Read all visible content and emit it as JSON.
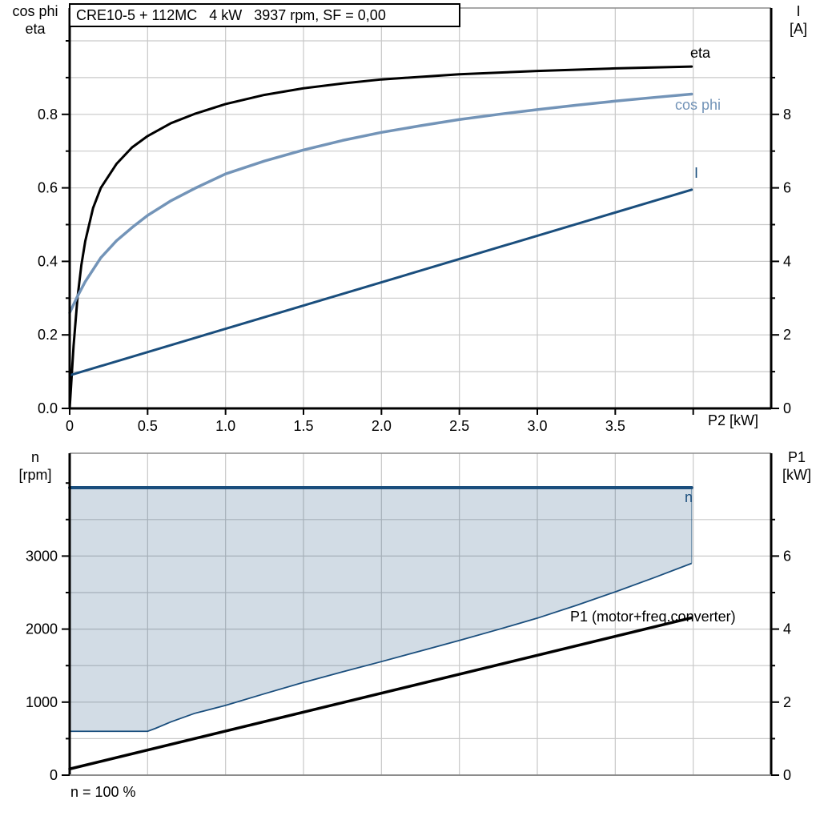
{
  "colors": {
    "black": "#000000",
    "navy": "#1a4e7d",
    "steel": "#7394b8",
    "grid": "#c9c9c9",
    "frame": "#8c8c8c",
    "fill": "rgba(28,79,124,0.2)"
  },
  "chart_data": [
    {
      "id": "motor-curves",
      "type": "line",
      "title": "CRE10-5 + 112MC   4 kW   3937 rpm, SF = 0,00",
      "left_axis": {
        "name_lines": [
          "cos phi",
          "eta"
        ],
        "major": [
          {
            "v": 0,
            "label": "0.0"
          },
          {
            "v": 0.2,
            "label": "0.2"
          },
          {
            "v": 0.4,
            "label": "0.4"
          },
          {
            "v": 0.6,
            "label": "0.6"
          },
          {
            "v": 0.8,
            "label": "0.8"
          }
        ],
        "minor": [
          0.1,
          0.3,
          0.5,
          0.7,
          0.9,
          1.0
        ],
        "grid": [
          0.1,
          0.2,
          0.3,
          0.4,
          0.5,
          0.6,
          0.7,
          0.8,
          0.9,
          1.0
        ],
        "range": [
          0,
          1.09
        ]
      },
      "right_axis": {
        "name_lines": [
          "I",
          "[A]"
        ],
        "major": [
          {
            "v": 0,
            "label": "0"
          },
          {
            "v": 2,
            "label": "2"
          },
          {
            "v": 4,
            "label": "4"
          },
          {
            "v": 6,
            "label": "6"
          },
          {
            "v": 8,
            "label": "8"
          }
        ],
        "minor": [
          1,
          3,
          5,
          7,
          9
        ],
        "unit_in_left": 0.1,
        "range": [
          0,
          10.9
        ]
      },
      "x_axis": {
        "label": "P2 [kW]",
        "major": [
          {
            "v": 0,
            "label": "0"
          },
          {
            "v": 0.5,
            "label": "0.5"
          },
          {
            "v": 1,
            "label": "1.0"
          },
          {
            "v": 1.5,
            "label": "1.5"
          },
          {
            "v": 2,
            "label": "2.0"
          },
          {
            "v": 2.5,
            "label": "2.5"
          },
          {
            "v": 3,
            "label": "3.0"
          },
          {
            "v": 3.5,
            "label": "3.5"
          },
          {
            "v": 4,
            "label": ""
          }
        ],
        "grid": [
          0.5,
          1,
          1.5,
          2,
          2.5,
          3,
          3.5,
          4
        ],
        "range": [
          0,
          4.5
        ]
      },
      "series": [
        {
          "name": "eta",
          "label": "eta",
          "color": "black",
          "width": 3,
          "axis": "left",
          "x": [
            0,
            0.025,
            0.05,
            0.075,
            0.1,
            0.15,
            0.2,
            0.3,
            0.4,
            0.5,
            0.65,
            0.8,
            1.0,
            1.25,
            1.5,
            1.75,
            2.0,
            2.5,
            3.0,
            3.5,
            3.99
          ],
          "y": [
            0,
            0.17,
            0.3,
            0.39,
            0.455,
            0.545,
            0.6,
            0.665,
            0.71,
            0.741,
            0.776,
            0.801,
            0.828,
            0.853,
            0.871,
            0.884,
            0.895,
            0.909,
            0.918,
            0.925,
            0.93
          ]
        },
        {
          "name": "cos-phi",
          "label": "cos phi",
          "color": "steel",
          "width": 3.5,
          "axis": "left",
          "x": [
            0,
            0.05,
            0.1,
            0.2,
            0.3,
            0.4,
            0.5,
            0.65,
            0.8,
            1.0,
            1.25,
            1.5,
            1.75,
            2.0,
            2.25,
            2.5,
            2.75,
            3.0,
            3.25,
            3.5,
            3.75,
            3.99
          ],
          "y": [
            0.26,
            0.305,
            0.345,
            0.41,
            0.456,
            0.492,
            0.525,
            0.565,
            0.598,
            0.638,
            0.673,
            0.703,
            0.729,
            0.751,
            0.769,
            0.786,
            0.8,
            0.813,
            0.825,
            0.836,
            0.846,
            0.855
          ]
        },
        {
          "name": "current",
          "label": "I",
          "color": "navy",
          "width": 3,
          "axis": "right",
          "x": [
            0,
            3.99
          ],
          "y": [
            0.9,
            5.95
          ]
        }
      ]
    },
    {
      "id": "speed-power",
      "type": "line",
      "footer": "n = 100 %",
      "left_axis": {
        "name_lines": [
          "n",
          "[rpm]"
        ],
        "major": [
          {
            "v": 0,
            "label": "0"
          },
          {
            "v": 1000,
            "label": "1000"
          },
          {
            "v": 2000,
            "label": "2000"
          },
          {
            "v": 3000,
            "label": "3000"
          }
        ],
        "minor": [
          500,
          1500,
          2500,
          3500,
          4000
        ],
        "grid": [
          500,
          1000,
          1500,
          2000,
          2500,
          3000,
          3500
        ],
        "range": [
          0,
          4400
        ]
      },
      "right_axis": {
        "name_lines": [
          "P1",
          "[kW]"
        ],
        "major": [
          {
            "v": 0,
            "label": "0"
          },
          {
            "v": 2,
            "label": "2"
          },
          {
            "v": 4,
            "label": "4"
          },
          {
            "v": 6,
            "label": "6"
          }
        ],
        "minor": [
          1,
          3,
          5,
          7
        ],
        "unit_in_left": 500,
        "range": [
          0,
          8.8
        ]
      },
      "x_axis": {
        "label": "",
        "major": [],
        "grid": [
          0.5,
          1,
          1.5,
          2,
          2.5,
          3,
          3.5,
          4
        ],
        "range": [
          0,
          4.5
        ]
      },
      "envelope": {
        "upper_rpm": 3937,
        "lower": {
          "x": [
            0,
            0.5,
            0.55,
            0.65,
            0.8,
            1.0,
            1.25,
            1.5,
            1.75,
            2.0,
            2.25,
            2.5,
            2.75,
            3.0,
            3.25,
            3.5,
            3.75,
            3.99
          ],
          "y": [
            600,
            600,
            640,
            730,
            845,
            955,
            1115,
            1270,
            1415,
            1555,
            1700,
            1845,
            1995,
            2150,
            2325,
            2510,
            2705,
            2900
          ]
        }
      },
      "series": [
        {
          "name": "speed",
          "label": "n",
          "color": "navy",
          "width": 4,
          "axis": "left",
          "x": [
            0,
            3.99
          ],
          "y": [
            3937,
            3937
          ]
        },
        {
          "name": "p1",
          "label": "P1 (motor+freq.converter)",
          "color": "black",
          "width": 3.5,
          "axis": "right",
          "x": [
            0,
            3.99
          ],
          "y": [
            0.17,
            4.31
          ]
        }
      ]
    }
  ]
}
